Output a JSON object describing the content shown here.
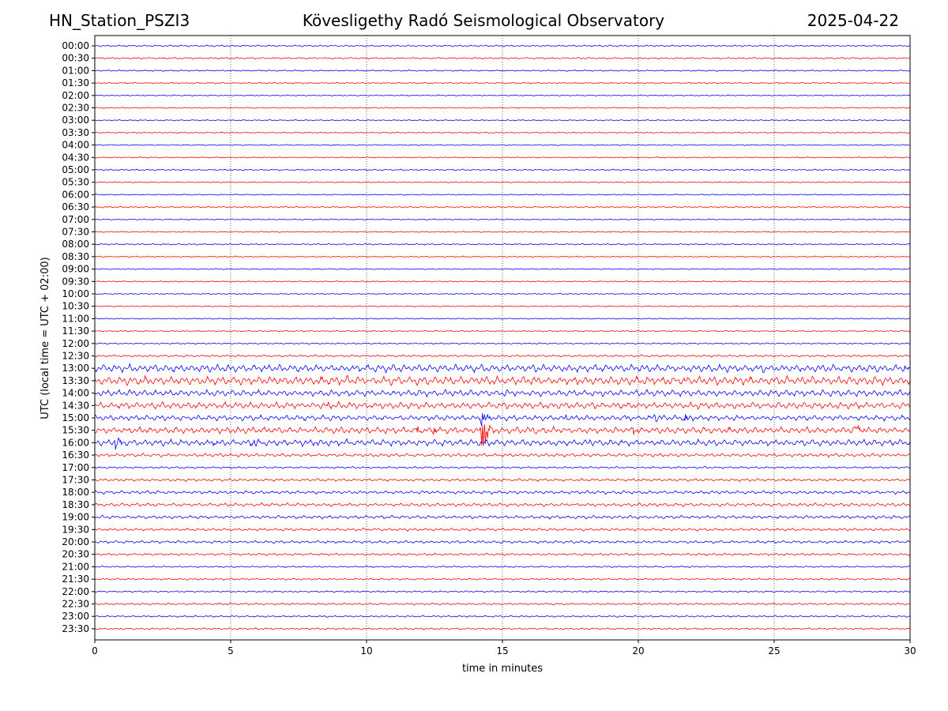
{
  "header": {
    "station": "HN_Station_PSZI3",
    "observatory": "Kövesligethy Radó Seismological Observatory",
    "date": "2025-04-22"
  },
  "chart_data": {
    "type": "line",
    "title": "Kövesligethy Radó Seismological Observatory",
    "xlabel": "time in minutes",
    "ylabel": "UTC (local time = UTC + 02:00)",
    "xlim": [
      0,
      30
    ],
    "xticks": [
      0,
      5,
      10,
      15,
      20,
      25,
      30
    ],
    "grid": "vertical dotted lines at 5-minute ticks",
    "trace_colors": [
      "#0000ff",
      "#ff0000"
    ],
    "rows": [
      {
        "label": "00:00",
        "color": "#0000ff",
        "level": 0.3
      },
      {
        "label": "00:30",
        "color": "#ff0000",
        "level": 0.3
      },
      {
        "label": "01:00",
        "color": "#0000ff",
        "level": 0.25
      },
      {
        "label": "01:30",
        "color": "#ff0000",
        "level": 0.2
      },
      {
        "label": "02:00",
        "color": "#0000ff",
        "level": 0.2
      },
      {
        "label": "02:30",
        "color": "#ff0000",
        "level": 0.2
      },
      {
        "label": "03:00",
        "color": "#0000ff",
        "level": 0.2
      },
      {
        "label": "03:30",
        "color": "#ff0000",
        "level": 0.2
      },
      {
        "label": "04:00",
        "color": "#0000ff",
        "level": 0.2
      },
      {
        "label": "04:30",
        "color": "#ff0000",
        "level": 0.2
      },
      {
        "label": "05:00",
        "color": "#0000ff",
        "level": 0.25
      },
      {
        "label": "05:30",
        "color": "#ff0000",
        "level": 0.2
      },
      {
        "label": "06:00",
        "color": "#0000ff",
        "level": 0.2
      },
      {
        "label": "06:30",
        "color": "#ff0000",
        "level": 0.25
      },
      {
        "label": "07:00",
        "color": "#0000ff",
        "level": 0.2
      },
      {
        "label": "07:30",
        "color": "#ff0000",
        "level": 0.2
      },
      {
        "label": "08:00",
        "color": "#0000ff",
        "level": 0.25
      },
      {
        "label": "08:30",
        "color": "#ff0000",
        "level": 0.2
      },
      {
        "label": "09:00",
        "color": "#0000ff",
        "level": 0.2
      },
      {
        "label": "09:30",
        "color": "#ff0000",
        "level": 0.2
      },
      {
        "label": "10:00",
        "color": "#0000ff",
        "level": 0.2
      },
      {
        "label": "10:30",
        "color": "#ff0000",
        "level": 0.2
      },
      {
        "label": "11:00",
        "color": "#0000ff",
        "level": 0.2
      },
      {
        "label": "11:30",
        "color": "#ff0000",
        "level": 0.2
      },
      {
        "label": "12:00",
        "color": "#0000ff",
        "level": 0.25
      },
      {
        "label": "12:30",
        "color": "#ff0000",
        "level": 0.4
      },
      {
        "label": "13:00",
        "color": "#0000ff",
        "level": 1.4
      },
      {
        "label": "13:30",
        "color": "#ff0000",
        "level": 1.6
      },
      {
        "label": "14:00",
        "color": "#0000ff",
        "level": 1.2
      },
      {
        "label": "14:30",
        "color": "#ff0000",
        "level": 1.2
      },
      {
        "label": "15:00",
        "color": "#0000ff",
        "level": 1.0
      },
      {
        "label": "15:30",
        "color": "#ff0000",
        "level": 1.2
      },
      {
        "label": "16:00",
        "color": "#0000ff",
        "level": 1.2
      },
      {
        "label": "16:30",
        "color": "#ff0000",
        "level": 0.6
      },
      {
        "label": "17:00",
        "color": "#0000ff",
        "level": 0.35
      },
      {
        "label": "17:30",
        "color": "#ff0000",
        "level": 0.5
      },
      {
        "label": "18:00",
        "color": "#0000ff",
        "level": 0.6
      },
      {
        "label": "18:30",
        "color": "#ff0000",
        "level": 0.6
      },
      {
        "label": "19:00",
        "color": "#0000ff",
        "level": 0.6
      },
      {
        "label": "19:30",
        "color": "#ff0000",
        "level": 0.5
      },
      {
        "label": "20:00",
        "color": "#0000ff",
        "level": 0.5
      },
      {
        "label": "20:30",
        "color": "#ff0000",
        "level": 0.4
      },
      {
        "label": "21:00",
        "color": "#0000ff",
        "level": 0.3
      },
      {
        "label": "21:30",
        "color": "#ff0000",
        "level": 0.3
      },
      {
        "label": "22:00",
        "color": "#0000ff",
        "level": 0.3
      },
      {
        "label": "22:30",
        "color": "#ff0000",
        "level": 0.35
      },
      {
        "label": "23:00",
        "color": "#0000ff",
        "level": 0.3
      },
      {
        "label": "23:30",
        "color": "#ff0000",
        "level": 0.3
      }
    ],
    "events": [
      {
        "row": "15:30",
        "minute": 14.25,
        "amplitude": 9.0
      },
      {
        "row": "15:00",
        "minute": 14.2,
        "amplitude": 3.5
      },
      {
        "row": "15:30",
        "minute": 11.85,
        "amplitude": 1.5
      },
      {
        "row": "15:30",
        "minute": 12.45,
        "amplitude": 1.2
      },
      {
        "row": "15:30",
        "minute": 16.15,
        "amplitude": 1.5
      },
      {
        "row": "15:30",
        "minute": 19.8,
        "amplitude": 1.3
      },
      {
        "row": "15:30",
        "minute": 23.3,
        "amplitude": 0.8
      },
      {
        "row": "15:30",
        "minute": 27.95,
        "amplitude": 2.5
      },
      {
        "row": "15:00",
        "minute": 17.3,
        "amplitude": 1.0
      },
      {
        "row": "15:00",
        "minute": 19.5,
        "amplitude": 0.8
      },
      {
        "row": "15:00",
        "minute": 20.55,
        "amplitude": 1.5
      },
      {
        "row": "15:00",
        "minute": 21.7,
        "amplitude": 1.2
      },
      {
        "row": "16:00",
        "minute": 0.75,
        "amplitude": 2.0
      },
      {
        "row": "16:00",
        "minute": 5.85,
        "amplitude": 1.2
      },
      {
        "row": "16:00",
        "minute": 4.35,
        "amplitude": 0.9
      },
      {
        "row": "16:00",
        "minute": 18.2,
        "amplitude": 0.8
      },
      {
        "row": "16:00",
        "minute": 20.5,
        "amplitude": 0.8
      },
      {
        "row": "13:30",
        "minute": 1.6,
        "amplitude": 1.0
      },
      {
        "row": "14:30",
        "minute": 8.6,
        "amplitude": 0.8
      },
      {
        "row": "13:00",
        "minute": 29.8,
        "amplitude": 1.0
      }
    ]
  }
}
